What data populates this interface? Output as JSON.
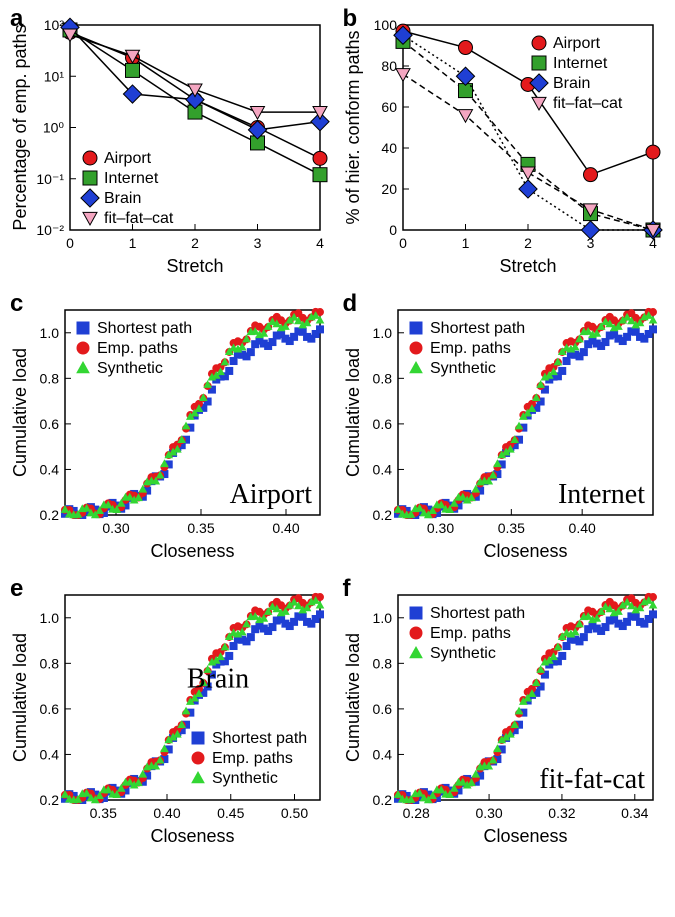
{
  "colors": {
    "airport": "#e31a1c",
    "internet": "#33a02c",
    "brain": "#1f3fd4",
    "fitfatcat": "#f4a6c1",
    "shortest": "#1f3fd4",
    "emp": "#e31a1c",
    "synthetic": "#33d633",
    "axis": "#000000",
    "bg": "#ffffff"
  },
  "panel_a": {
    "label": "a",
    "xlabel": "Stretch",
    "ylabel": "Percentage of emp. paths",
    "xlim": [
      0,
      4
    ],
    "ylim": [
      0.01,
      100
    ],
    "yscale": "log",
    "xticks": [
      0,
      1,
      2,
      3,
      4
    ],
    "yticks": [
      0.01,
      0.1,
      1,
      10,
      100
    ],
    "ytick_labels": [
      "10⁻²",
      "10⁻¹",
      "10⁰",
      "10¹",
      "10²"
    ],
    "series": [
      {
        "name": "Airport",
        "marker": "circle",
        "fill": "#e31a1c",
        "stroke": "#000000",
        "x": [
          0,
          1,
          2,
          3,
          4
        ],
        "y": [
          72,
          23,
          3.5,
          1.0,
          0.25
        ],
        "line": "solid"
      },
      {
        "name": "Internet",
        "marker": "square",
        "fill": "#33a02c",
        "stroke": "#000000",
        "x": [
          0,
          1,
          2,
          3,
          4
        ],
        "y": [
          80,
          13,
          2.0,
          0.5,
          0.12
        ],
        "line": "solid"
      },
      {
        "name": "Brain",
        "marker": "diamond",
        "fill": "#1f3fd4",
        "stroke": "#000000",
        "x": [
          0,
          1,
          2,
          3,
          4
        ],
        "y": [
          90,
          4.5,
          3.5,
          0.9,
          1.3
        ],
        "line": "solid"
      },
      {
        "name": "fit–fat–cat",
        "marker": "triangle-down",
        "fill": "#f4a6c1",
        "stroke": "#000000",
        "x": [
          0,
          1,
          2,
          3,
          4
        ],
        "y": [
          65,
          25,
          5.5,
          2.0,
          2.0
        ],
        "line": "solid"
      }
    ],
    "legend_pos": "bottom-left"
  },
  "panel_b": {
    "label": "b",
    "xlabel": "Stretch",
    "ylabel": "% of hier. conform paths",
    "xlim": [
      0,
      4
    ],
    "ylim": [
      0,
      100
    ],
    "xticks": [
      0,
      1,
      2,
      3,
      4
    ],
    "yticks": [
      0,
      20,
      40,
      60,
      80,
      100
    ],
    "series": [
      {
        "name": "Airport",
        "marker": "circle",
        "fill": "#e31a1c",
        "stroke": "#000000",
        "x": [
          0,
          1,
          2,
          3,
          4
        ],
        "y": [
          97,
          89,
          71,
          27,
          38
        ],
        "line": "solid"
      },
      {
        "name": "Internet",
        "marker": "square",
        "fill": "#33a02c",
        "stroke": "#000000",
        "x": [
          0,
          1,
          2,
          3,
          4
        ],
        "y": [
          92,
          68,
          32,
          8,
          0
        ],
        "line": "dashed"
      },
      {
        "name": "Brain",
        "marker": "diamond",
        "fill": "#1f3fd4",
        "stroke": "#000000",
        "x": [
          0,
          1,
          2,
          3,
          4
        ],
        "y": [
          95,
          75,
          20,
          0,
          0
        ],
        "line": "dotted"
      },
      {
        "name": "fit–fat–cat",
        "marker": "triangle-down",
        "fill": "#f4a6c1",
        "stroke": "#000000",
        "x": [
          0,
          1,
          2,
          3,
          4
        ],
        "y": [
          76,
          56,
          28,
          10,
          0
        ],
        "line": "dashed"
      }
    ],
    "legend_pos": "top-right"
  },
  "panel_c": {
    "label": "c",
    "title": "Airport",
    "title_pos": "right",
    "xlabel": "Closeness",
    "ylabel": "Cumulative load",
    "xlim": [
      0.27,
      0.42
    ],
    "ylim": [
      0.2,
      1.1
    ],
    "xticks": [
      0.3,
      0.35,
      0.4
    ],
    "yticks": [
      0.2,
      0.4,
      0.6,
      0.8,
      1.0
    ],
    "legend_pos": "top-left"
  },
  "panel_d": {
    "label": "d",
    "title": "Internet",
    "title_pos": "right",
    "xlabel": "Closeness",
    "ylabel": "Cumulative load",
    "xlim": [
      0.27,
      0.45
    ],
    "ylim": [
      0.2,
      1.1
    ],
    "xticks": [
      0.3,
      0.35,
      0.4
    ],
    "yticks": [
      0.2,
      0.4,
      0.6,
      0.8,
      1.0
    ],
    "legend_pos": "top-left"
  },
  "panel_e": {
    "label": "e",
    "title": "Brain",
    "title_pos": "center",
    "xlabel": "Closeness",
    "ylabel": "Cumulative load",
    "xlim": [
      0.32,
      0.52
    ],
    "ylim": [
      0.2,
      1.1
    ],
    "xticks": [
      0.35,
      0.4,
      0.45,
      0.5
    ],
    "yticks": [
      0.2,
      0.4,
      0.6,
      0.8,
      1.0
    ],
    "legend_pos": "bottom-right"
  },
  "panel_f": {
    "label": "f",
    "title": "fit-fat-cat",
    "title_pos": "right",
    "xlabel": "Closeness",
    "ylabel": "Cumulative load",
    "xlim": [
      0.275,
      0.345
    ],
    "ylim": [
      0.2,
      1.1
    ],
    "xticks": [
      0.28,
      0.3,
      0.32,
      0.34
    ],
    "yticks": [
      0.2,
      0.4,
      0.6,
      0.8,
      1.0
    ],
    "legend_pos": "top-left"
  },
  "scatter_legend": [
    {
      "name": "Shortest path",
      "marker": "square",
      "color": "#1f3fd4"
    },
    {
      "name": "Emp. paths",
      "marker": "circle",
      "color": "#e31a1c"
    },
    {
      "name": "Synthetic",
      "marker": "triangle-up",
      "color": "#33d633"
    }
  ],
  "label_fontsize": 18,
  "tick_fontsize": 14,
  "legend_fontsize": 16,
  "title_fontsize": 28,
  "marker_size": 7,
  "line_width": 1.5
}
